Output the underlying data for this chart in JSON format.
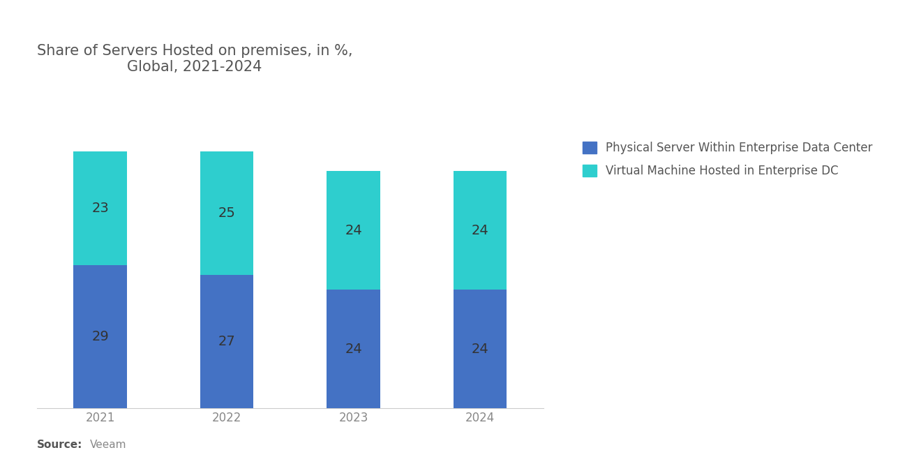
{
  "title": "Share of Servers Hosted on premises, in %,\nGlobal, 2021-2024",
  "title_fontsize": 15,
  "title_color": "#555555",
  "years": [
    "2021",
    "2022",
    "2023",
    "2024"
  ],
  "physical": [
    29,
    27,
    24,
    24
  ],
  "virtual": [
    23,
    25,
    24,
    24
  ],
  "physical_color": "#4472c4",
  "virtual_color": "#2ecece",
  "bar_width": 0.42,
  "legend_labels": [
    "Physical Server Within Enterprise Data Center",
    "Virtual Machine Hosted in Enterprise DC"
  ],
  "source_bold": "Source:",
  "source_text": "Veeam",
  "source_fontsize": 11,
  "source_color": "#888888",
  "label_fontsize": 14,
  "label_color": "#333333",
  "tick_fontsize": 12,
  "tick_color": "#888888",
  "background_color": "#ffffff",
  "legend_fontsize": 12,
  "legend_color": "#555555"
}
